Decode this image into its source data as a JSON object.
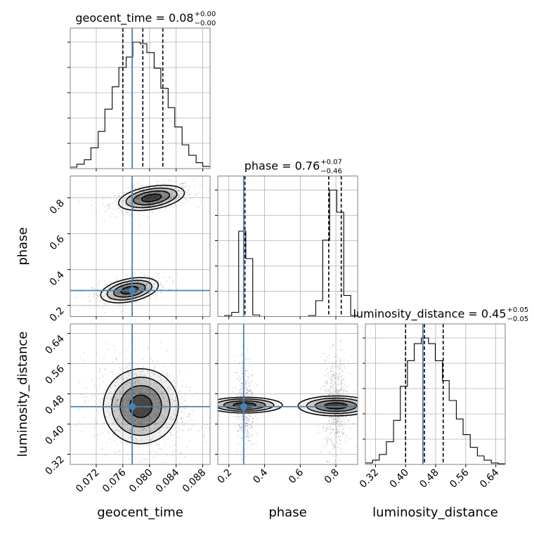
{
  "colors": {
    "truth": "#4682b4",
    "hist": "#000000",
    "grid": "#b0b0b0",
    "frame": "#808080",
    "density": "#000000",
    "samples": "#7f7f7f"
  },
  "chart_data": {
    "type": "corner",
    "parameters": [
      "geocent_time",
      "phase",
      "luminosity_distance"
    ],
    "axis_labels": {
      "x": [
        "geocent_time",
        "phase",
        "luminosity_distance"
      ],
      "y": [
        "phase",
        "luminosity_distance"
      ]
    },
    "ranges": {
      "geocent_time": [
        0.0681,
        0.0891
      ],
      "phase": [
        0.138,
        0.922
      ],
      "luminosity_distance": [
        0.293,
        0.665
      ]
    },
    "ticks": {
      "geocent_time": [
        0.072,
        0.076,
        0.08,
        0.084,
        0.088
      ],
      "phase": [
        0.2,
        0.4,
        0.6,
        0.8
      ],
      "luminosity_distance": [
        0.32,
        0.4,
        0.48,
        0.56,
        0.64
      ]
    },
    "tick_labels": {
      "geocent_time": [
        "0.072",
        "0.076",
        "0.080",
        "0.084",
        "0.088"
      ],
      "phase": [
        "0.2",
        "0.4",
        "0.6",
        "0.8"
      ],
      "luminosity_distance": [
        "0.32",
        "0.40",
        "0.48",
        "0.56",
        "0.64"
      ]
    },
    "truths": {
      "geocent_time": 0.0774,
      "phase": 0.283,
      "luminosity_distance": 0.446
    },
    "titles": [
      {
        "param": "geocent_time",
        "text": "geocent_time = 0.08",
        "plus": "+0.00",
        "minus": "−0.00"
      },
      {
        "param": "phase",
        "text": "phase = 0.76",
        "plus": "+0.07",
        "minus": "−0.46"
      },
      {
        "param": "luminosity_distance",
        "text": "luminosity_distance = 0.45",
        "plus": "+0.05",
        "minus": "−0.05"
      }
    ],
    "quantiles": {
      "geocent_time": [
        0.076,
        0.079,
        0.082
      ],
      "phase": [
        0.29,
        0.76,
        0.83
      ],
      "luminosity_distance": [
        0.4,
        0.45,
        0.5
      ]
    },
    "histograms": {
      "geocent_time": {
        "edges": [
          0.0681,
          0.0691,
          0.0702,
          0.0712,
          0.0723,
          0.0733,
          0.0744,
          0.0754,
          0.0765,
          0.0775,
          0.0786,
          0.0796,
          0.0807,
          0.0817,
          0.0828,
          0.0838,
          0.0849,
          0.0859,
          0.087,
          0.088,
          0.0891
        ],
        "counts": [
          2,
          6,
          12,
          28,
          50,
          80,
          110,
          136,
          150,
          170,
          168,
          156,
          135,
          108,
          82,
          56,
          32,
          18,
          8,
          3
        ]
      },
      "phase": {
        "edges": [
          0.138,
          0.177,
          0.216,
          0.255,
          0.295,
          0.334,
          0.373,
          0.412,
          0.452,
          0.491,
          0.53,
          0.569,
          0.609,
          0.648,
          0.687,
          0.726,
          0.765,
          0.805,
          0.844,
          0.883,
          0.922
        ],
        "counts": [
          0,
          2,
          8,
          162,
          110,
          3,
          0,
          0,
          0,
          0,
          0,
          0,
          0,
          2,
          30,
          145,
          240,
          198,
          40,
          2
        ]
      },
      "luminosity_distance": {
        "edges": [
          0.293,
          0.312,
          0.33,
          0.349,
          0.368,
          0.386,
          0.405,
          0.423,
          0.442,
          0.461,
          0.479,
          0.498,
          0.516,
          0.535,
          0.553,
          0.572,
          0.591,
          0.609,
          0.628,
          0.646,
          0.665
        ],
        "counts": [
          2,
          6,
          14,
          32,
          62,
          110,
          146,
          170,
          178,
          170,
          146,
          118,
          90,
          64,
          42,
          24,
          12,
          6,
          2,
          1
        ]
      }
    },
    "pairs": [
      {
        "x": "geocent_time",
        "y": "phase",
        "modes": [
          {
            "cx": 0.0803,
            "cy": 0.8,
            "sx": 0.0025,
            "sy": 0.032,
            "rho": 0.45,
            "weight": 0.62
          },
          {
            "cx": 0.077,
            "cy": 0.285,
            "sx": 0.0022,
            "sy": 0.032,
            "rho": 0.45,
            "weight": 0.38
          }
        ],
        "levels": [
          0.14,
          0.42,
          0.72,
          0.93
        ]
      },
      {
        "x": "geocent_time",
        "y": "luminosity_distance",
        "modes": [
          {
            "cx": 0.0787,
            "cy": 0.447,
            "sx": 0.0028,
            "sy": 0.05,
            "rho": -0.18,
            "weight": 1.0
          }
        ],
        "levels": [
          0.14,
          0.42,
          0.72,
          0.93
        ]
      },
      {
        "x": "phase",
        "y": "luminosity_distance",
        "modes": [
          {
            "cx": 0.288,
            "cy": 0.45,
            "sx": 0.022,
            "sy": 0.05,
            "rho": 0.0,
            "weight": 0.4
          },
          {
            "cx": 0.8,
            "cy": 0.448,
            "sx": 0.028,
            "sy": 0.05,
            "rho": 0.0,
            "weight": 0.6
          }
        ],
        "levels": [
          0.14,
          0.42,
          0.72,
          0.93
        ]
      }
    ]
  }
}
